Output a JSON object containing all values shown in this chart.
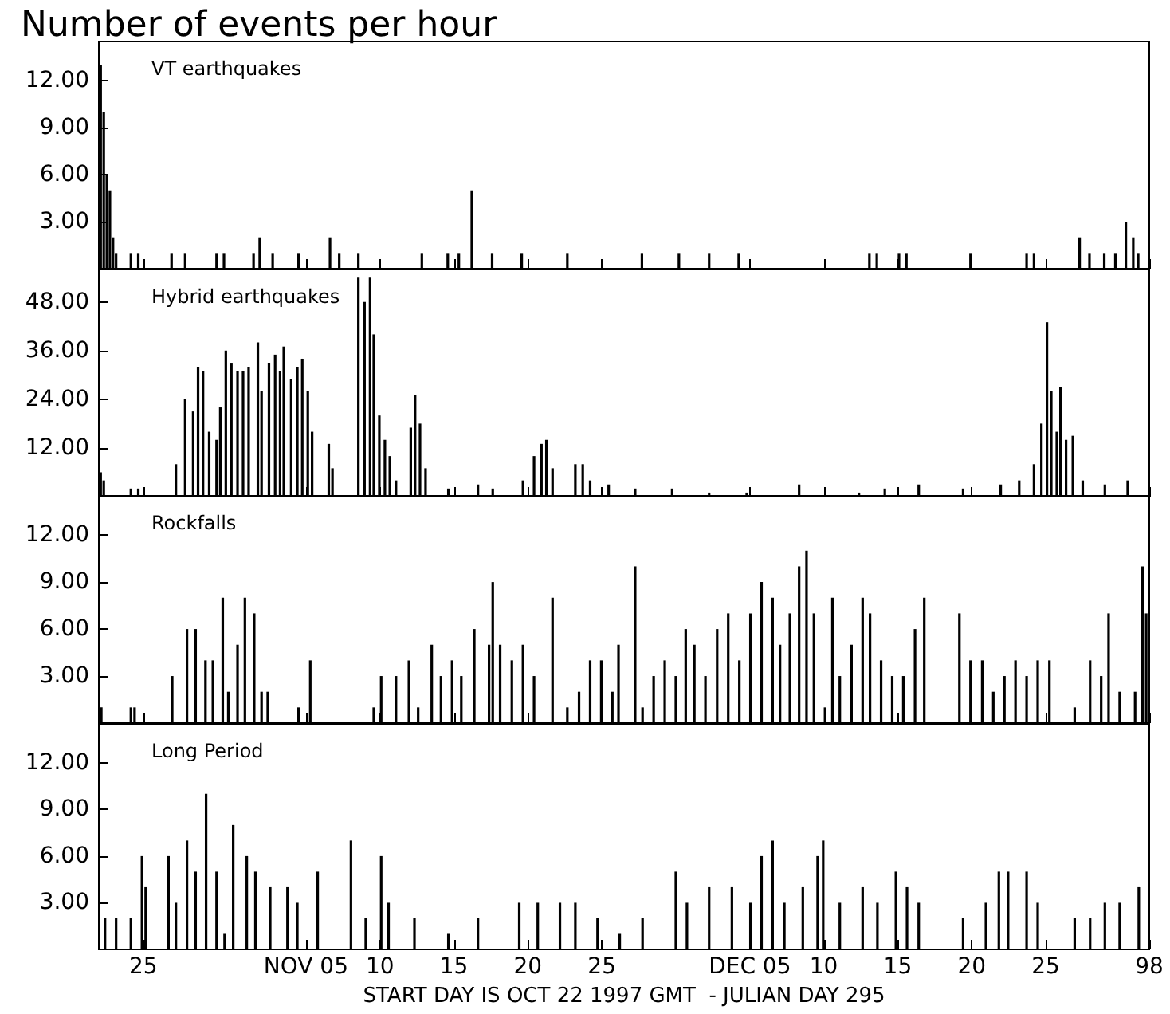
{
  "chart_data": [
    {
      "type": "bar",
      "title": "Number of events per hour",
      "tick_labels": "y",
      "xlim": [
        "1997-10-22",
        "1998-01-01"
      ],
      "xticks": [
        {
          "value": "1997-10-25",
          "label": null
        },
        {
          "value": "1997-11-05",
          "label": null
        },
        {
          "value": "1997-11-10",
          "label": null
        },
        {
          "value": "1997-11-15",
          "label": null
        },
        {
          "value": "1997-11-20",
          "label": null
        },
        {
          "value": "1997-11-25",
          "label": null
        },
        {
          "value": "1997-12-05",
          "label": null
        },
        {
          "value": "1997-12-10",
          "label": null
        },
        {
          "value": "1997-12-15",
          "label": null
        },
        {
          "value": "1997-12-20",
          "label": null
        },
        {
          "value": "1997-12-25",
          "label": null
        },
        {
          "value": "1998-01-01",
          "label": null
        }
      ],
      "ylim": [
        0,
        14.5
      ],
      "yticks": [
        {
          "value": 3,
          "label": "3.00"
        },
        {
          "value": 6,
          "label": "6.00"
        },
        {
          "value": 9,
          "label": "9.00"
        },
        {
          "value": 12,
          "label": "12.00"
        }
      ],
      "series": [
        {
          "name": "VT earthquakes",
          "color": "#000000",
          "x": [
            "1997-10-22T03:00",
            "1997-10-22T08:00",
            "1997-10-22T13:00",
            "1997-10-22T18:00",
            "1997-10-22T23:00",
            "1997-10-23T04:00",
            "1997-10-24T04:00",
            "1997-10-24T16:00",
            "1997-10-26T22:00",
            "1997-10-27T20:00",
            "1997-10-29T23:00",
            "1997-10-30T11:00",
            "1997-11-01T11:00",
            "1997-11-01T21:00",
            "1997-11-02T18:00",
            "1997-11-04T12:00",
            "1997-11-06T15:00",
            "1997-11-07T06:00",
            "1997-11-08T13:00",
            "1997-11-12T20:00",
            "1997-11-14T14:00",
            "1997-11-15T08:00",
            "1997-11-16T05:00",
            "1997-11-17T14:00",
            "1997-11-19T14:00",
            "1997-11-22T16:00",
            "1997-11-27T17:00",
            "1997-11-30T05:00",
            "1997-12-02T06:00",
            "1997-12-04T06:00",
            "1997-12-13T02:00",
            "1997-12-13T14:00",
            "1997-12-15T02:00",
            "1997-12-15T14:00",
            "1997-12-19T22:00",
            "1997-12-23T17:00",
            "1997-12-24T05:00",
            "1997-12-27T07:00",
            "1997-12-27T23:00",
            "1997-12-28T23:00",
            "1997-12-29T17:00",
            "1997-12-30T10:00",
            "1997-12-30T22:00",
            "1997-12-31T06:00"
          ],
          "values": [
            13,
            10,
            6,
            5,
            2,
            1,
            1,
            1,
            1,
            1,
            1,
            1,
            1,
            2,
            1,
            1,
            2,
            1,
            1,
            1,
            1,
            1,
            5,
            1,
            1,
            1,
            1,
            1,
            1,
            1,
            1,
            1,
            1,
            1,
            1,
            1,
            1,
            2,
            1,
            1,
            1,
            3,
            2,
            1
          ]
        }
      ]
    },
    {
      "type": "bar",
      "tick_labels": "y",
      "xlim": [
        "1997-10-22",
        "1998-01-01"
      ],
      "xticks": [
        {
          "value": "1997-10-25",
          "label": null
        },
        {
          "value": "1997-11-05",
          "label": null
        },
        {
          "value": "1997-11-10",
          "label": null
        },
        {
          "value": "1997-11-15",
          "label": null
        },
        {
          "value": "1997-11-20",
          "label": null
        },
        {
          "value": "1997-11-25",
          "label": null
        },
        {
          "value": "1997-12-05",
          "label": null
        },
        {
          "value": "1997-12-10",
          "label": null
        },
        {
          "value": "1997-12-15",
          "label": null
        },
        {
          "value": "1997-12-20",
          "label": null
        },
        {
          "value": "1997-12-25",
          "label": null
        },
        {
          "value": "1998-01-01",
          "label": null
        }
      ],
      "ylim": [
        0,
        56
      ],
      "yticks": [
        {
          "value": 12,
          "label": "12.00"
        },
        {
          "value": 24,
          "label": "24.00"
        },
        {
          "value": 36,
          "label": "36.00"
        },
        {
          "value": 48,
          "label": "48.00"
        }
      ],
      "series": [
        {
          "name": "Hybrid earthquakes",
          "color": "#000000",
          "x": [
            "1997-10-22T03:00",
            "1997-10-22T08:00",
            "1997-10-24T04:00",
            "1997-10-24T16:00",
            "1997-10-27T05:00",
            "1997-10-27T20:00",
            "1997-10-28T09:00",
            "1997-10-28T17:00",
            "1997-10-29T01:00",
            "1997-10-29T11:00",
            "1997-10-29T23:00",
            "1997-10-30T05:00",
            "1997-10-30T14:00",
            "1997-10-30T23:00",
            "1997-10-31T09:00",
            "1997-10-31T18:00",
            "1997-11-01T03:00",
            "1997-11-01T18:00",
            "1997-11-02T00:00",
            "1997-11-02T12:00",
            "1997-11-02T22:00",
            "1997-11-03T06:00",
            "1997-11-03T12:00",
            "1997-11-04T00:00",
            "1997-11-04T10:00",
            "1997-11-04T18:00",
            "1997-11-05T03:00",
            "1997-11-05T10:00",
            "1997-11-06T13:00",
            "1997-11-06T19:00",
            "1997-11-08T13:00",
            "1997-11-08T23:00",
            "1997-11-09T08:00",
            "1997-11-09T14:00",
            "1997-11-09T23:00",
            "1997-11-10T08:00",
            "1997-11-10T16:00",
            "1997-11-11T02:00",
            "1997-11-12T02:00",
            "1997-11-12T09:00",
            "1997-11-12T17:00",
            "1997-11-13T02:00",
            "1997-11-14T15:00",
            "1997-11-16T15:00",
            "1997-11-17T15:00",
            "1997-11-19T16:00",
            "1997-11-20T10:00",
            "1997-11-20T22:00",
            "1997-11-21T06:00",
            "1997-11-21T16:00",
            "1997-11-23T05:00",
            "1997-11-23T17:00",
            "1997-11-24T05:00",
            "1997-11-25T11:00",
            "1997-11-27T06:00",
            "1997-11-29T18:00",
            "1997-12-02T06:00",
            "1997-12-04T19:00",
            "1997-12-08T08:00",
            "1997-12-12T09:00",
            "1997-12-14T03:00",
            "1997-12-16T10:00",
            "1997-12-19T10:00",
            "1997-12-21T23:00",
            "1997-12-23T05:00",
            "1997-12-24T05:00",
            "1997-12-24T17:00",
            "1997-12-25T02:00",
            "1997-12-25T09:00",
            "1997-12-25T18:00",
            "1997-12-26T00:00",
            "1997-12-26T09:00",
            "1997-12-26T20:00",
            "1997-12-27T12:00",
            "1997-12-29T00:00",
            "1997-12-30T13:00"
          ],
          "values": [
            6,
            4,
            2,
            2,
            8,
            24,
            21,
            32,
            31,
            16,
            14,
            22,
            36,
            33,
            31,
            31,
            32,
            38,
            26,
            33,
            35,
            31,
            37,
            29,
            32,
            34,
            26,
            16,
            13,
            7,
            54,
            48,
            54,
            40,
            20,
            14,
            10,
            4,
            17,
            25,
            18,
            7,
            2,
            3,
            2,
            4,
            10,
            13,
            14,
            7,
            8,
            8,
            4,
            3,
            2,
            2,
            1,
            1,
            3,
            1,
            2,
            3,
            2,
            3,
            4,
            8,
            18,
            43,
            26,
            16,
            27,
            14,
            15,
            4,
            3,
            4
          ]
        }
      ]
    },
    {
      "type": "bar",
      "tick_labels": "y",
      "xlim": [
        "1997-10-22",
        "1998-01-01"
      ],
      "xticks": [
        {
          "value": "1997-10-25",
          "label": null
        },
        {
          "value": "1997-11-05",
          "label": null
        },
        {
          "value": "1997-11-10",
          "label": null
        },
        {
          "value": "1997-11-15",
          "label": null
        },
        {
          "value": "1997-11-20",
          "label": null
        },
        {
          "value": "1997-11-25",
          "label": null
        },
        {
          "value": "1997-12-05",
          "label": null
        },
        {
          "value": "1997-12-10",
          "label": null
        },
        {
          "value": "1997-12-15",
          "label": null
        },
        {
          "value": "1997-12-20",
          "label": null
        },
        {
          "value": "1997-12-25",
          "label": null
        },
        {
          "value": "1998-01-01",
          "label": null
        }
      ],
      "ylim": [
        0,
        14.5
      ],
      "yticks": [
        {
          "value": 3,
          "label": "3.00"
        },
        {
          "value": 6,
          "label": "6.00"
        },
        {
          "value": 9,
          "label": "9.00"
        },
        {
          "value": 12,
          "label": "12.00"
        }
      ],
      "series": [
        {
          "name": "Rockfalls",
          "color": "#000000",
          "x": [
            "1997-10-22T04:00",
            "1997-10-24T04:00",
            "1997-10-24T10:00",
            "1997-10-26T23:00",
            "1997-10-27T23:00",
            "1997-10-28T13:00",
            "1997-10-29T05:00",
            "1997-10-29T17:00",
            "1997-10-30T09:00",
            "1997-10-30T18:00",
            "1997-10-31T09:00",
            "1997-10-31T21:00",
            "1997-11-01T12:00",
            "1997-11-02T00:00",
            "1997-11-02T10:00",
            "1997-11-04T12:00",
            "1997-11-05T07:00",
            "1997-11-09T14:00",
            "1997-11-10T02:00",
            "1997-11-11T02:00",
            "1997-11-11T23:00",
            "1997-11-12T14:00",
            "1997-11-13T12:00",
            "1997-11-14T03:00",
            "1997-11-14T21:00",
            "1997-11-15T12:00",
            "1997-11-16T09:00",
            "1997-11-17T09:00",
            "1997-11-17T15:00",
            "1997-11-18T03:00",
            "1997-11-18T22:00",
            "1997-11-19T16:00",
            "1997-11-20T10:00",
            "1997-11-21T16:00",
            "1997-11-22T16:00",
            "1997-11-23T11:00",
            "1997-11-24T05:00",
            "1997-11-24T23:00",
            "1997-11-25T17:00",
            "1997-11-26T03:00",
            "1997-11-27T06:00",
            "1997-11-27T18:00",
            "1997-11-28T12:00",
            "1997-11-29T06:00",
            "1997-11-30T00:00",
            "1997-11-30T16:00",
            "1997-12-01T06:00",
            "1997-12-02T00:00",
            "1997-12-02T19:00",
            "1997-12-03T13:00",
            "1997-12-04T07:00",
            "1997-12-05T01:00",
            "1997-12-05T19:00",
            "1997-12-06T13:00",
            "1997-12-07T01:00",
            "1997-12-07T17:00",
            "1997-12-08T08:00",
            "1997-12-08T20:00",
            "1997-12-09T08:00",
            "1997-12-10T02:00",
            "1997-12-10T14:00",
            "1997-12-11T02:00",
            "1997-12-11T21:00",
            "1997-12-12T15:00",
            "1997-12-13T03:00",
            "1997-12-13T21:00",
            "1997-12-14T15:00",
            "1997-12-15T09:00",
            "1997-12-16T04:00",
            "1997-12-16T19:00",
            "1997-12-19T04:00",
            "1997-12-19T22:00",
            "1997-12-20T17:00",
            "1997-12-21T11:00",
            "1997-12-22T05:00",
            "1997-12-22T23:00",
            "1997-12-23T17:00",
            "1997-12-24T11:00",
            "1997-12-25T06:00",
            "1997-12-26T23:00",
            "1997-12-28T00:00",
            "1997-12-28T18:00",
            "1997-12-29T06:00",
            "1997-12-30T00:00",
            "1997-12-31T01:00",
            "1997-12-31T13:00",
            "1997-12-31T19:00"
          ],
          "values": [
            1,
            1,
            1,
            3,
            6,
            6,
            4,
            4,
            8,
            2,
            5,
            8,
            7,
            2,
            2,
            1,
            4,
            1,
            3,
            3,
            4,
            1,
            5,
            3,
            4,
            3,
            6,
            5,
            9,
            5,
            4,
            5,
            3,
            8,
            1,
            2,
            4,
            4,
            2,
            5,
            10,
            1,
            3,
            4,
            3,
            6,
            5,
            3,
            6,
            7,
            4,
            7,
            9,
            8,
            5,
            7,
            10,
            11,
            7,
            1,
            8,
            3,
            5,
            8,
            7,
            4,
            3,
            3,
            6,
            8,
            7,
            4,
            4,
            2,
            3,
            4,
            3,
            4,
            4,
            1,
            4,
            3,
            7,
            2,
            2,
            10,
            7
          ]
        }
      ]
    },
    {
      "type": "bar",
      "xlabel": "START DAY IS OCT 22 1997 GMT  - JULIAN DAY 295",
      "xlim": [
        "1997-10-22",
        "1998-01-01"
      ],
      "xticks": [
        {
          "value": "1997-10-25",
          "label": "25"
        },
        {
          "value": "1997-11-05",
          "label": "NOV 05"
        },
        {
          "value": "1997-11-10",
          "label": "10"
        },
        {
          "value": "1997-11-15",
          "label": "15"
        },
        {
          "value": "1997-11-20",
          "label": "20"
        },
        {
          "value": "1997-11-25",
          "label": "25"
        },
        {
          "value": "1997-12-05",
          "label": "DEC 05"
        },
        {
          "value": "1997-12-10",
          "label": "10"
        },
        {
          "value": "1997-12-15",
          "label": "15"
        },
        {
          "value": "1997-12-20",
          "label": "20"
        },
        {
          "value": "1997-12-25",
          "label": "25"
        },
        {
          "value": "1998-01-01",
          "label": "98"
        }
      ],
      "ylim": [
        0,
        14.5
      ],
      "yticks": [
        {
          "value": 3,
          "label": "3.00"
        },
        {
          "value": 6,
          "label": "6.00"
        },
        {
          "value": 9,
          "label": "9.00"
        },
        {
          "value": 12,
          "label": "12.00"
        }
      ],
      "series": [
        {
          "name": "Long Period",
          "color": "#000000",
          "x": [
            "1997-10-22T10:00",
            "1997-10-23T04:00",
            "1997-10-24T04:00",
            "1997-10-24T22:00",
            "1997-10-25T04:00",
            "1997-10-26T17:00",
            "1997-10-27T05:00",
            "1997-10-27T23:00",
            "1997-10-28T13:00",
            "1997-10-29T06:00",
            "1997-10-29T23:00",
            "1997-10-30T12:00",
            "1997-10-31T02:00",
            "1997-11-01T00:00",
            "1997-11-01T14:00",
            "1997-11-02T14:00",
            "1997-11-03T18:00",
            "1997-11-04T10:00",
            "1997-11-05T19:00",
            "1997-11-08T01:00",
            "1997-11-09T01:00",
            "1997-11-10T02:00",
            "1997-11-10T14:00",
            "1997-11-12T08:00",
            "1997-11-14T15:00",
            "1997-11-16T15:00",
            "1997-11-19T10:00",
            "1997-11-20T16:00",
            "1997-11-22T04:00",
            "1997-11-23T05:00",
            "1997-11-24T17:00",
            "1997-11-26T05:00",
            "1997-11-27T18:00",
            "1997-11-30T00:00",
            "1997-11-30T18:00",
            "1997-12-02T06:00",
            "1997-12-03T19:00",
            "1997-12-05T01:00",
            "1997-12-05T19:00",
            "1997-12-06T13:00",
            "1997-12-07T08:00",
            "1997-12-08T14:00",
            "1997-12-09T14:00",
            "1997-12-09T23:00",
            "1997-12-11T02:00",
            "1997-12-12T15:00",
            "1997-12-13T15:00",
            "1997-12-14T21:00",
            "1997-12-15T15:00",
            "1997-12-16T10:00",
            "1997-12-19T10:00",
            "1997-12-20T23:00",
            "1997-12-21T20:00",
            "1997-12-22T11:00",
            "1997-12-23T17:00",
            "1997-12-24T11:00",
            "1997-12-26T23:00",
            "1997-12-28T00:00",
            "1997-12-29T00:00",
            "1997-12-30T00:00",
            "1997-12-31T07:00"
          ],
          "values": [
            2,
            2,
            2,
            6,
            4,
            6,
            3,
            7,
            5,
            10,
            5,
            1,
            8,
            6,
            5,
            4,
            4,
            3,
            5,
            7,
            2,
            6,
            3,
            2,
            1,
            2,
            3,
            3,
            3,
            3,
            2,
            1,
            2,
            5,
            3,
            4,
            4,
            3,
            6,
            7,
            3,
            4,
            6,
            7,
            3,
            4,
            3,
            5,
            4,
            3,
            2,
            3,
            5,
            5,
            5,
            3,
            2,
            2,
            3,
            3,
            4
          ]
        }
      ]
    }
  ]
}
